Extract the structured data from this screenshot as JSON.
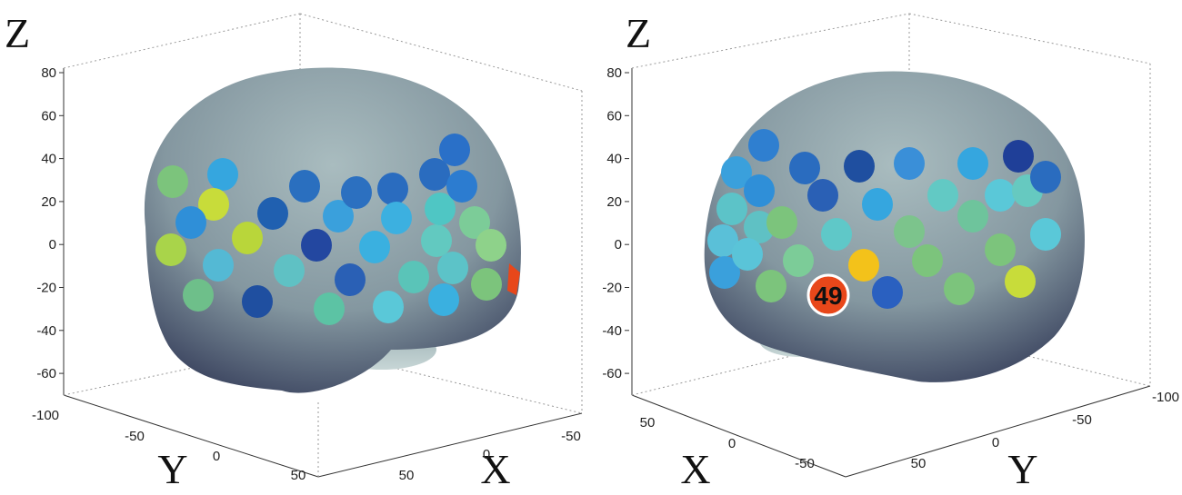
{
  "panels": [
    {
      "z_label": "Z",
      "z_ticks": [
        "80",
        "60",
        "40",
        "20",
        "0",
        "-20",
        "-40",
        "-60"
      ],
      "y_label": "Y",
      "y_ticks": [
        "-100",
        "-50",
        "0",
        "50"
      ],
      "x_label": "X",
      "x_ticks": [
        "-50",
        "0",
        "50"
      ]
    },
    {
      "z_label": "Z",
      "z_ticks": [
        "80",
        "60",
        "40",
        "20",
        "0",
        "-20",
        "-40",
        "-60"
      ],
      "x_label": "X",
      "x_ticks": [
        "50",
        "0",
        "-50"
      ],
      "y_label": "Y",
      "y_ticks": [
        "-100",
        "-50",
        "0",
        "50"
      ],
      "marker": "49"
    }
  ]
}
